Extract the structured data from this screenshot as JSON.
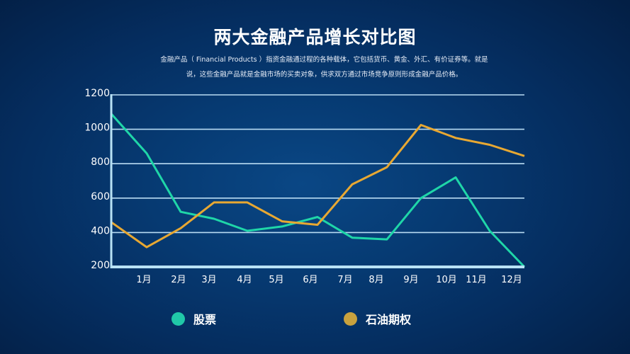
{
  "title": "两大金融产品增长对比图",
  "subtitle": {
    "line1": "金融产品（ Financial Products ）指资金融通过程的各种载体，它包括货币、黄金、外汇、有价证券等。就是",
    "line2": "说，这些金融产品就是金融市场的买卖对象，供求双方通过市场竞争原则形成金融产品价格。"
  },
  "colors": {
    "series_stock": "#1fd6a8",
    "series_oil": "#e8a832",
    "legend_stock": "#20c8a8",
    "legend_oil": "#c9a23e",
    "grid": "#b9dcf3",
    "axis": "#b9e2f5"
  },
  "legend": {
    "items": [
      {
        "label": "股票",
        "color": "#20c8a8"
      },
      {
        "label": "石油期权",
        "color": "#c9a23e"
      }
    ]
  },
  "chart_data": {
    "type": "line",
    "title": "两大金融产品增长对比图",
    "xlabel": "",
    "ylabel": "",
    "yticks": [
      1200,
      1000,
      800,
      600,
      400,
      200
    ],
    "ylim": [
      200,
      1200
    ],
    "grid": true,
    "legend_position": "bottom",
    "x_tick_labels": [
      "1月",
      "2月",
      "3月",
      "4月",
      "5月",
      "6月",
      "7月",
      "8月",
      "9月",
      "10月",
      "11月",
      "12月"
    ],
    "point_count": 13,
    "series": [
      {
        "name": "股票",
        "color": "#1fd6a8",
        "values": [
          1090,
          860,
          520,
          480,
          410,
          435,
          490,
          370,
          360,
          600,
          720,
          410,
          200
        ]
      },
      {
        "name": "石油期权",
        "color": "#e8a832",
        "values": [
          460,
          315,
          425,
          575,
          575,
          465,
          445,
          680,
          780,
          1025,
          950,
          910,
          845
        ]
      }
    ]
  }
}
